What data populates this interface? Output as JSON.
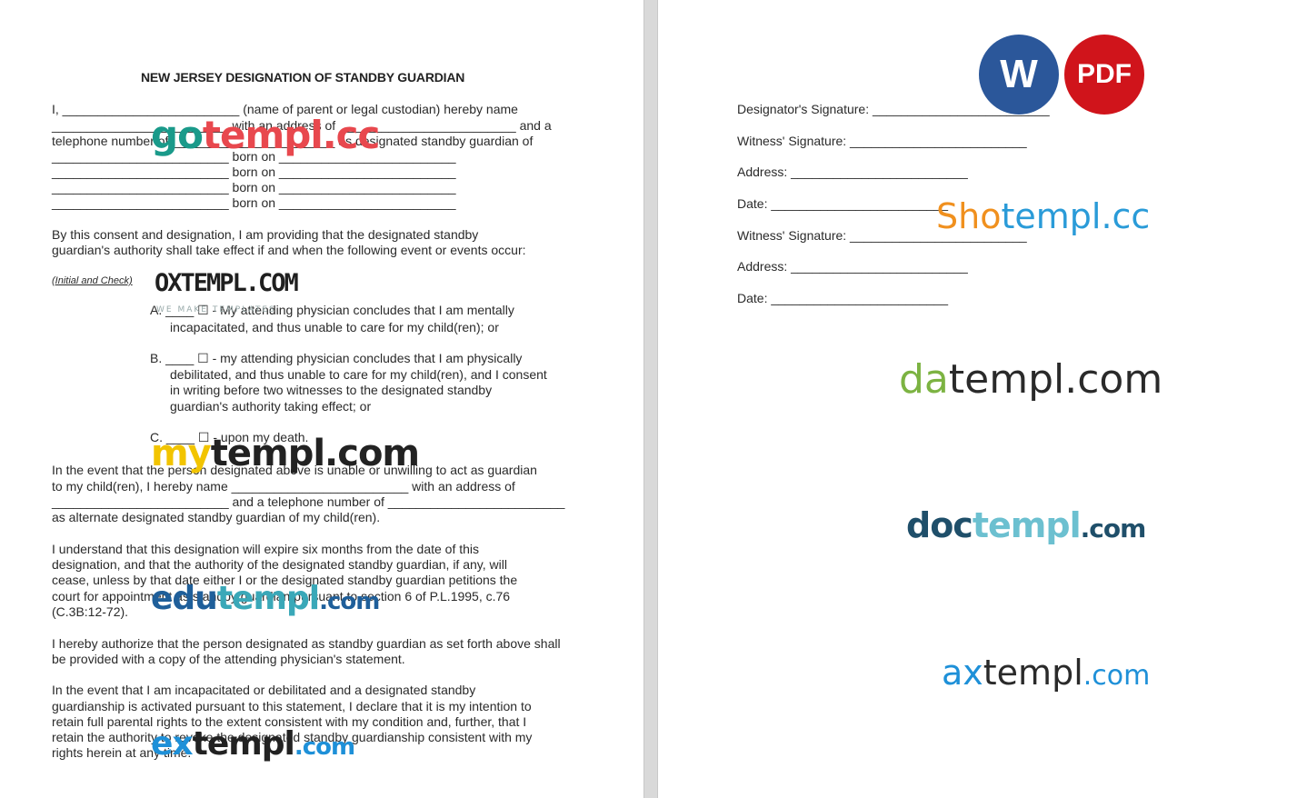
{
  "document": {
    "title": "NEW JERSEY DESIGNATION OF STANDBY GUARDIAN",
    "left_lines": [
      "I, _________________________ (name of parent or legal custodian) hereby name",
      "_________________________ with an address of _________________________ and a",
      "telephone number of _______________________ as designated standby guardian of",
      "_________________________ born on _________________________",
      "_________________________ born on _________________________",
      "_________________________ born on _________________________",
      "_________________________ born on _________________________",
      "By this consent and designation, I am providing that the designated standby",
      "guardian's authority shall take effect if and when the following event or events occur:",
      "A. ____ ☐ - My attending physician concludes that I am mentally",
      "incapacitated, and thus unable to care for my child(ren); or",
      "B. ____ ☐ - my attending physician concludes that I am physically",
      "debilitated, and thus unable to care for my child(ren), and I consent",
      "in writing before two witnesses to the designated standby",
      "guardian's authority taking effect; or",
      "C. ____ ☐ - upon my death.",
      "In the event that the person designated above is unable or unwilling to act as guardian",
      "to my child(ren), I hereby name _________________________ with an address of",
      "_________________________ and a telephone number of _________________________",
      "as alternate designated standby guardian of my child(ren).",
      "I understand that this designation will expire six months from the date of this",
      "designation, and that the authority of the designated standby guardian, if any, will",
      "cease, unless by that date either I or the designated standby guardian petitions the",
      "court for appointment as standby guardian pursuant to section 6 of P.L.1995, c.76",
      "(C.3B:12-72).",
      "I hereby authorize that the person designated as standby guardian as set forth above shall",
      "be provided with a copy of the attending physician's statement.",
      "In the event that I am incapacitated or debilitated and a designated standby",
      "guardianship is activated pursuant to this statement, I declare that it is my intention to",
      "retain full parental rights to the extent consistent with my condition and, further, that I",
      "retain the authority to revoke the designated standby guardianship consistent with my",
      "rights herein at any time."
    ],
    "initial_check_label": "(Initial and Check)",
    "right_lines": [
      "Designator's Signature: _________________________",
      "Witness' Signature: _________________________",
      "Address: _________________________",
      "Date: _________________________",
      "Witness' Signature: _________________________",
      "Address: _________________________",
      "Date: _________________________"
    ]
  },
  "badges": {
    "word": "W",
    "pdf": "PDF",
    "word_color": "#2b579a",
    "pdf_color": "#d0141b"
  },
  "watermarks": {
    "gotempl": [
      "go",
      "templ.cc"
    ],
    "oxtempl": "OXTEMPL.COM",
    "oxtempl_tag": "WE MAKE TEMPLATES",
    "mytempl": [
      "my",
      "templ.com"
    ],
    "edutempl": [
      "edu",
      "templ",
      ".com"
    ],
    "extempl": [
      "ex",
      "templ",
      ".com"
    ],
    "shotempl": [
      "Sho",
      "templ.cc"
    ],
    "datempl": [
      "da",
      "templ.com"
    ],
    "doctempl": [
      "doc",
      "templ",
      ".com"
    ],
    "axtempl": [
      "ax",
      "templ",
      ".com"
    ]
  }
}
